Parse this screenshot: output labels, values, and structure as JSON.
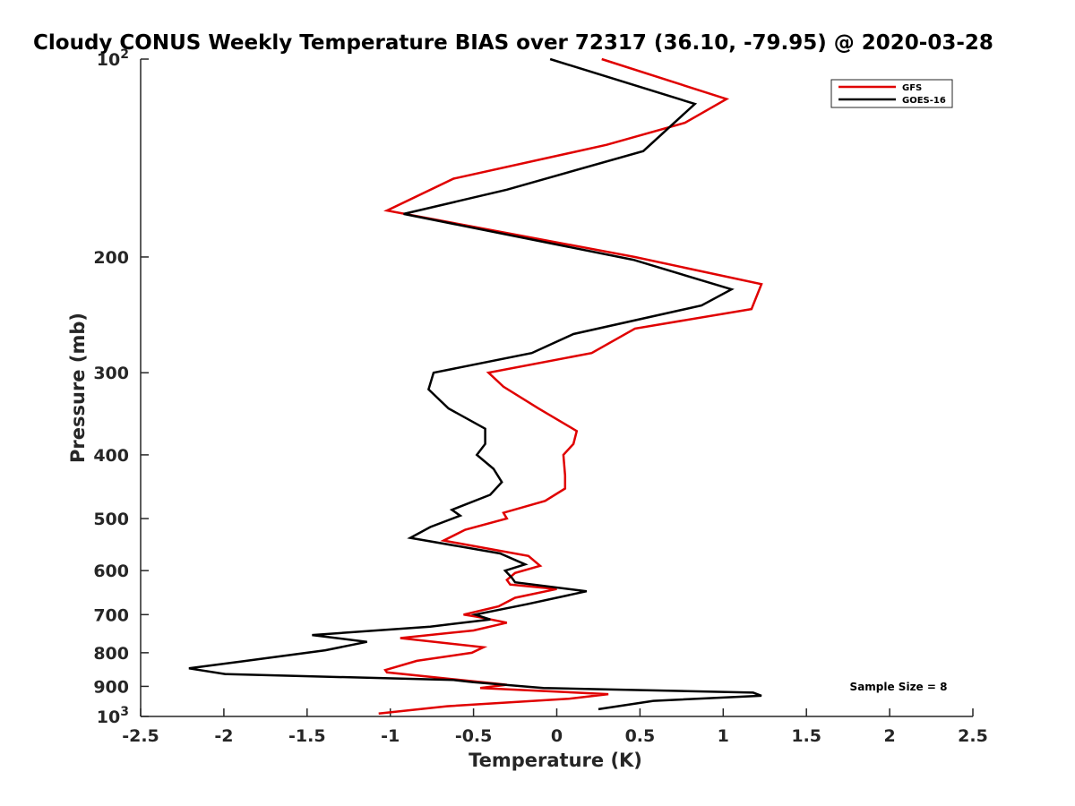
{
  "chart_data": {
    "type": "line",
    "title": "Cloudy CONUS Weekly Temperature BIAS over 72317 (36.10, -79.95) @ 2020-03-28",
    "xlabel": "Temperature (K)",
    "ylabel": "Pressure (mb)",
    "xlim": [
      -2.5,
      2.5
    ],
    "ylim": [
      100,
      1000
    ],
    "yscale": "log",
    "yreversed": true,
    "xticks": [
      -2.5,
      -2,
      -1.5,
      -1,
      -0.5,
      0,
      0.5,
      1,
      1.5,
      2,
      2.5
    ],
    "xtick_labels": [
      "-2.5",
      "-2",
      "-1.5",
      "-1",
      "-0.5",
      "0",
      "0.5",
      "1",
      "1.5",
      "2",
      "2.5"
    ],
    "yticks": [
      100,
      200,
      300,
      400,
      500,
      600,
      700,
      800,
      900,
      1000
    ],
    "ytick_labels": [
      {
        "base": "10",
        "exp": "2"
      },
      {
        "base": "200",
        "exp": ""
      },
      {
        "base": "300",
        "exp": ""
      },
      {
        "base": "400",
        "exp": ""
      },
      {
        "base": "500",
        "exp": ""
      },
      {
        "base": "600",
        "exp": ""
      },
      {
        "base": "700",
        "exp": ""
      },
      {
        "base": "800",
        "exp": ""
      },
      {
        "base": "900",
        "exp": ""
      },
      {
        "base": "10",
        "exp": "3"
      }
    ],
    "grid": false,
    "legend_position": "top-right",
    "annotation": "Sample Size = 8",
    "series": [
      {
        "name": "GFS",
        "color": "#e00000",
        "points": [
          [
            0.27,
            100
          ],
          [
            1.02,
            115
          ],
          [
            0.77,
            125
          ],
          [
            0.3,
            135
          ],
          [
            -0.62,
            152
          ],
          [
            -1.02,
            170
          ],
          [
            0.47,
            200
          ],
          [
            1.23,
            220
          ],
          [
            1.17,
            240
          ],
          [
            0.47,
            257
          ],
          [
            0.21,
            280
          ],
          [
            -0.41,
            300
          ],
          [
            -0.32,
            315
          ],
          [
            -0.11,
            340
          ],
          [
            0.12,
            368
          ],
          [
            0.1,
            385
          ],
          [
            0.04,
            400
          ],
          [
            0.05,
            430
          ],
          [
            0.05,
            450
          ],
          [
            -0.07,
            470
          ],
          [
            -0.32,
            490
          ],
          [
            -0.3,
            500
          ],
          [
            -0.55,
            520
          ],
          [
            -0.68,
            540
          ],
          [
            -0.17,
            570
          ],
          [
            -0.1,
            590
          ],
          [
            -0.25,
            605
          ],
          [
            -0.3,
            620
          ],
          [
            -0.28,
            630
          ],
          [
            0.0,
            640
          ],
          [
            -0.25,
            660
          ],
          [
            -0.35,
            680
          ],
          [
            -0.56,
            700
          ],
          [
            -0.48,
            705
          ],
          [
            -0.3,
            720
          ],
          [
            -0.5,
            740
          ],
          [
            -0.94,
            760
          ],
          [
            -0.44,
            785
          ],
          [
            -0.51,
            800
          ],
          [
            -0.84,
            823
          ],
          [
            -1.03,
            850
          ],
          [
            -1.02,
            857
          ],
          [
            -0.3,
            895
          ],
          [
            -0.46,
            905
          ],
          [
            0.31,
            925
          ],
          [
            0.07,
            940
          ],
          [
            -0.66,
            965
          ],
          [
            -1.07,
            990
          ]
        ]
      },
      {
        "name": "GOES-16",
        "color": "#000000",
        "points": [
          [
            -0.04,
            100
          ],
          [
            0.83,
            117
          ],
          [
            0.52,
            138
          ],
          [
            -0.3,
            158
          ],
          [
            -0.92,
            172
          ],
          [
            0.46,
            202
          ],
          [
            1.05,
            224
          ],
          [
            0.87,
            237
          ],
          [
            0.1,
            262
          ],
          [
            -0.15,
            280
          ],
          [
            -0.74,
            300
          ],
          [
            -0.77,
            318
          ],
          [
            -0.65,
            340
          ],
          [
            -0.43,
            365
          ],
          [
            -0.43,
            385
          ],
          [
            -0.48,
            400
          ],
          [
            -0.38,
            420
          ],
          [
            -0.33,
            440
          ],
          [
            -0.4,
            460
          ],
          [
            -0.63,
            485
          ],
          [
            -0.58,
            495
          ],
          [
            -0.76,
            515
          ],
          [
            -0.88,
            535
          ],
          [
            -0.34,
            565
          ],
          [
            -0.19,
            587
          ],
          [
            -0.31,
            600
          ],
          [
            -0.27,
            615
          ],
          [
            -0.25,
            625
          ],
          [
            0.18,
            645
          ],
          [
            -0.18,
            675
          ],
          [
            -0.49,
            700
          ],
          [
            -0.4,
            712
          ],
          [
            -0.76,
            730
          ],
          [
            -1.47,
            752
          ],
          [
            -1.14,
            770
          ],
          [
            -1.39,
            793
          ],
          [
            -1.9,
            825
          ],
          [
            -2.21,
            845
          ],
          [
            -1.99,
            862
          ],
          [
            -0.62,
            880
          ],
          [
            -0.5,
            887
          ],
          [
            -0.08,
            905
          ],
          [
            1.18,
            920
          ],
          [
            1.23,
            930
          ],
          [
            0.58,
            947
          ],
          [
            0.25,
            975
          ]
        ]
      }
    ]
  }
}
